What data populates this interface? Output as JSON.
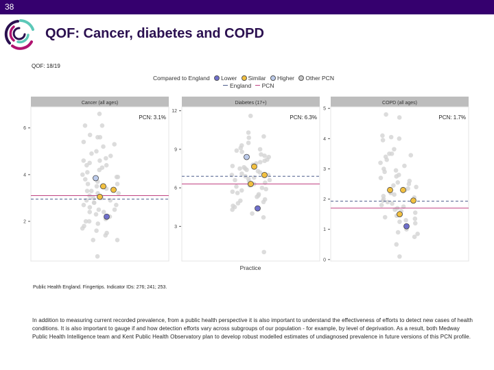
{
  "slide_number": "38",
  "title": "QOF: Cancer, diabetes and COPD",
  "subtitle": "QOF: 18/19",
  "legend": {
    "title": "Compared to England",
    "items": [
      {
        "label": "Lower",
        "color": "#7070cc"
      },
      {
        "label": "Similar",
        "color": "#f2c040"
      },
      {
        "label": "Higher",
        "color": "#bccbeb"
      },
      {
        "label": "Other PCN",
        "color": "#c8c8c8"
      }
    ],
    "lines": [
      {
        "label": "England",
        "color": "#4a5a8a",
        "style": "dashed"
      },
      {
        "label": "PCN",
        "color": "#c04080",
        "style": "solid"
      }
    ]
  },
  "x_label": "Practice",
  "chart_data": [
    {
      "type": "scatter",
      "panel": "Cancer (all ages)",
      "pcn_label": "PCN: 3.1%",
      "pcn": 3.1,
      "england": 2.95,
      "yticks": [
        2,
        4,
        6
      ],
      "ylim": [
        0.3,
        6.9
      ],
      "practices": [
        {
          "y": 3.85,
          "cmp": "Higher"
        },
        {
          "y": 3.5,
          "cmp": "Similar"
        },
        {
          "y": 3.35,
          "cmp": "Similar"
        },
        {
          "y": 3.05,
          "cmp": "Similar"
        },
        {
          "y": 2.2,
          "cmp": "Lower"
        }
      ],
      "other_pcn": [
        6.6,
        6.1,
        6.1,
        5.7,
        5.6,
        5.6,
        5.4,
        5.3,
        5.2,
        5.0,
        4.9,
        4.8,
        4.7,
        4.6,
        4.6,
        4.5,
        4.4,
        4.4,
        4.3,
        4.2,
        4.1,
        4.0,
        3.9,
        3.9,
        3.8,
        3.7,
        3.6,
        3.6,
        3.5,
        3.5,
        3.4,
        3.3,
        3.3,
        3.2,
        3.2,
        3.1,
        3.0,
        3.0,
        2.9,
        2.9,
        2.8,
        2.8,
        2.7,
        2.7,
        2.6,
        2.5,
        2.5,
        2.4,
        2.4,
        2.3,
        2.2,
        2.1,
        2.0,
        2.0,
        1.9,
        1.8,
        1.7,
        1.6,
        1.5,
        1.4,
        1.2,
        1.2,
        0.5
      ]
    },
    {
      "type": "scatter",
      "panel": "Diabetes (17+)",
      "pcn_label": "PCN: 6.3%",
      "pcn": 6.3,
      "england": 6.9,
      "yticks": [
        3,
        6,
        9,
        12
      ],
      "ylim": [
        0.3,
        12.3
      ],
      "practices": [
        {
          "y": 8.4,
          "cmp": "Higher"
        },
        {
          "y": 7.65,
          "cmp": "Similar"
        },
        {
          "y": 7.0,
          "cmp": "Similar"
        },
        {
          "y": 6.3,
          "cmp": "Similar"
        },
        {
          "y": 4.4,
          "cmp": "Lower"
        }
      ],
      "other_pcn": [
        11.6,
        10.3,
        10.0,
        9.9,
        9.5,
        9.3,
        9.1,
        9.0,
        8.9,
        8.8,
        8.6,
        8.5,
        8.4,
        8.2,
        8.1,
        8.0,
        7.9,
        7.8,
        7.7,
        7.6,
        7.5,
        7.5,
        7.4,
        7.3,
        7.2,
        7.1,
        7.0,
        7.0,
        6.9,
        6.8,
        6.7,
        6.6,
        6.6,
        6.5,
        6.4,
        6.3,
        6.2,
        6.1,
        6.0,
        5.9,
        5.8,
        5.7,
        5.6,
        5.5,
        5.4,
        5.3,
        5.1,
        5.0,
        4.9,
        4.8,
        4.6,
        4.5,
        4.3,
        4.0,
        3.7,
        1.0
      ]
    },
    {
      "type": "scatter",
      "panel": "COPD (all ages)",
      "pcn_label": "PCN: 1.7%",
      "pcn": 1.7,
      "england": 1.93,
      "yticks": [
        0,
        1,
        2,
        3,
        4,
        5
      ],
      "ylim": [
        -0.05,
        5.05
      ],
      "practices": [
        {
          "y": 2.3,
          "cmp": "Similar"
        },
        {
          "y": 2.3,
          "cmp": "Similar"
        },
        {
          "y": 1.95,
          "cmp": "Similar"
        },
        {
          "y": 1.5,
          "cmp": "Similar"
        },
        {
          "y": 1.1,
          "cmp": "Lower"
        }
      ],
      "other_pcn": [
        4.8,
        4.7,
        4.1,
        4.05,
        4.0,
        3.95,
        3.65,
        3.5,
        3.5,
        3.45,
        3.4,
        3.3,
        3.2,
        3.1,
        3.0,
        2.95,
        2.9,
        2.8,
        2.75,
        2.7,
        2.6,
        2.55,
        2.5,
        2.45,
        2.4,
        2.35,
        2.3,
        2.2,
        2.15,
        2.1,
        2.05,
        2.0,
        1.95,
        1.9,
        1.85,
        1.8,
        1.75,
        1.7,
        1.65,
        1.6,
        1.55,
        1.5,
        1.45,
        1.4,
        1.35,
        1.3,
        1.25,
        1.2,
        1.0,
        0.9,
        0.85,
        0.75,
        0.5,
        0.1
      ]
    }
  ],
  "source": "Public Health England. Fingertips. Indicator IDs: 276; 241; 253.",
  "paragraph": "In addition to measuring current recorded prevalence, from a public health perspective it is also important to understand the effectiveness of efforts to detect new cases of health conditions. It is also important to gauge if and how detection efforts vary across subgroups of our population - for example, by level of deprivation. As a result, both Medway Public Health Intelligence team and Kent Public Health Observatory plan to develop robust modelled estimates of undiagnosed prevalence in future versions of this PCN profile."
}
